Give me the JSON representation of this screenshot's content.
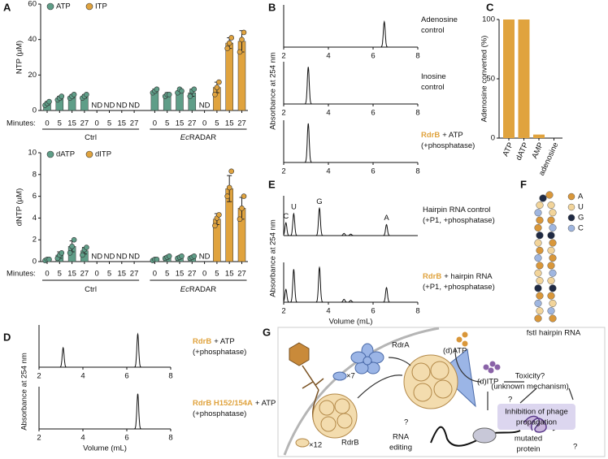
{
  "panel_labels": [
    "A",
    "B",
    "C",
    "D",
    "E",
    "F",
    "G"
  ],
  "chart_data": [
    {
      "type": "bar",
      "ylabel": "NTP (µM)",
      "xlabel": "Minutes:",
      "categories": [
        "0",
        "5",
        "15",
        "27",
        "0",
        "5",
        "15",
        "27",
        "0",
        "5",
        "15",
        "27",
        "0",
        "5",
        "15",
        "27"
      ],
      "groups": [
        {
          "label": "Ctrl"
        },
        {
          "italic": "Ec",
          "label": "RADAR"
        }
      ],
      "ylim": [
        0,
        60
      ],
      "yticks": [
        0,
        20,
        40,
        60
      ],
      "series": [
        {
          "name": "ATP",
          "color": "#5f9e88",
          "values": [
            4,
            7,
            8,
            8,
            null,
            null,
            null,
            null,
            11,
            9,
            11,
            10,
            null,
            null,
            null,
            null
          ],
          "errors": [
            1,
            1,
            1,
            1,
            null,
            null,
            null,
            null,
            1,
            1,
            1,
            2,
            null,
            null,
            null,
            null
          ],
          "points": [
            [
              3,
              4,
              5
            ],
            [
              6,
              7,
              8
            ],
            [
              7,
              8,
              9
            ],
            [
              7,
              8,
              9
            ],
            null,
            null,
            null,
            null,
            [
              10,
              11,
              12
            ],
            [
              8,
              9,
              9
            ],
            [
              10,
              12,
              11
            ],
            [
              8,
              11,
              12
            ],
            null,
            null,
            null,
            null
          ]
        },
        {
          "name": "ITP",
          "color": "#e0a33e",
          "values": [
            null,
            null,
            null,
            null,
            null,
            null,
            null,
            null,
            null,
            null,
            null,
            null,
            null,
            13,
            38,
            39
          ],
          "value_labels": [
            null,
            null,
            null,
            null,
            "ND",
            "ND",
            "ND",
            "ND",
            null,
            null,
            null,
            null,
            "ND",
            null,
            null,
            null
          ],
          "errors": [
            null,
            null,
            null,
            null,
            null,
            null,
            null,
            null,
            null,
            null,
            null,
            null,
            null,
            3,
            3,
            6
          ],
          "points": [
            null,
            null,
            null,
            null,
            null,
            null,
            null,
            null,
            null,
            null,
            null,
            null,
            null,
            [
              9,
              13,
              16
            ],
            [
              35,
              38,
              41
            ],
            [
              33,
              40,
              44
            ]
          ]
        }
      ]
    },
    {
      "type": "bar",
      "ylabel": "dNTP (µM)",
      "xlabel": "Minutes:",
      "categories": [
        "0",
        "5",
        "15",
        "27",
        "0",
        "5",
        "15",
        "27",
        "0",
        "5",
        "15",
        "27",
        "0",
        "5",
        "15",
        "27"
      ],
      "groups": [
        {
          "label": "Ctrl"
        },
        {
          "italic": "Ec",
          "label": "RADAR"
        }
      ],
      "ylim": [
        0,
        10
      ],
      "yticks": [
        0,
        2,
        4,
        6,
        8,
        10
      ],
      "series": [
        {
          "name": "dATP",
          "color": "#5f9e88",
          "values": [
            0.2,
            0.6,
            1.4,
            1.0,
            null,
            null,
            null,
            null,
            0.2,
            0.4,
            0.4,
            0.4,
            null,
            null,
            null,
            null
          ],
          "errors": [
            0.1,
            0.3,
            0.5,
            0.3,
            null,
            null,
            null,
            null,
            0.1,
            0.1,
            0.1,
            0.1,
            null,
            null,
            null,
            null
          ],
          "points": [
            [
              0.1,
              0.2,
              0.2
            ],
            [
              0.3,
              0.6,
              0.8
            ],
            [
              0.8,
              1.4,
              2.0
            ],
            [
              0.6,
              1.1,
              1.3
            ],
            null,
            null,
            null,
            null,
            [
              0.1,
              0.2,
              0.2
            ],
            [
              0.3,
              0.4,
              0.5
            ],
            [
              0.3,
              0.4,
              0.5
            ],
            [
              0.3,
              0.4,
              0.5
            ],
            null,
            null,
            null,
            null
          ]
        },
        {
          "name": "dITP",
          "color": "#e0a33e",
          "values": [
            null,
            null,
            null,
            null,
            null,
            null,
            null,
            null,
            null,
            null,
            null,
            null,
            null,
            3.9,
            6.7,
            4.9
          ],
          "value_labels": [
            null,
            null,
            null,
            null,
            "ND",
            "ND",
            "ND",
            "ND",
            null,
            null,
            null,
            null,
            "ND",
            null,
            null,
            null
          ],
          "errors": [
            null,
            null,
            null,
            null,
            null,
            null,
            null,
            null,
            null,
            null,
            null,
            null,
            null,
            0.5,
            1.2,
            1.0
          ],
          "points": [
            null,
            null,
            null,
            null,
            null,
            null,
            null,
            null,
            null,
            null,
            null,
            null,
            null,
            [
              3.3,
              4.0,
              4.3
            ],
            [
              6.0,
              6.8,
              8.3
            ],
            [
              3.9,
              4.9,
              6.0
            ]
          ]
        }
      ]
    },
    {
      "type": "chromatogram",
      "ylabel": "Absorbance at 254 nm",
      "xlim": [
        2,
        8
      ],
      "xticks": [
        2,
        4,
        6,
        8
      ],
      "traces": [
        {
          "label": {
            "lines": [
              "Adenosine",
              "control"
            ]
          },
          "peaks": [
            {
              "x": 6.5,
              "height": 0.65
            }
          ]
        },
        {
          "label": {
            "lines": [
              "Inosine",
              "control"
            ]
          },
          "peaks": [
            {
              "x": 3.1,
              "height": 0.95
            }
          ]
        },
        {
          "label": {
            "highlight": "RdrB",
            "lines": [
              "+ ATP",
              "(+phosphatase)"
            ]
          },
          "peaks": [
            {
              "x": 3.1,
              "height": 1.0
            }
          ]
        }
      ]
    },
    {
      "type": "bar",
      "ylabel": "Adenosine converted (%)",
      "color": "#e0a33e",
      "categories": [
        "ATP",
        "dATP",
        "AMP",
        "adenosine"
      ],
      "values": [
        100,
        100,
        3,
        0
      ],
      "ylim": [
        0,
        100
      ],
      "yticks": [
        0,
        50,
        100
      ]
    },
    {
      "type": "chromatogram",
      "ylabel": "Absorbance at 254 nm",
      "xlabel": "Volume (mL)",
      "xlim": [
        2,
        8
      ],
      "xticks": [
        2,
        4,
        6,
        8
      ],
      "traces": [
        {
          "label": {
            "highlight": "RdrB",
            "lines": [
              "+ ATP",
              "(+phosphatase)"
            ]
          },
          "peaks": [
            {
              "x": 3.1,
              "height": 0.5
            },
            {
              "x": 6.5,
              "height": 0.85
            }
          ]
        },
        {
          "label": {
            "highlight": "RdrB H152/154A",
            "lines": [
              "+ ATP",
              "(+phosphatase)"
            ]
          },
          "peaks": [
            {
              "x": 6.5,
              "height": 0.9
            }
          ]
        }
      ]
    },
    {
      "type": "chromatogram",
      "ylabel": "Absorbance at 254 nm",
      "xlabel": "Volume (mL)",
      "xlim": [
        2,
        8
      ],
      "xticks": [
        2,
        4,
        6,
        8
      ],
      "traces": [
        {
          "label": {
            "lines": [
              "Hairpin RNA control",
              "(+P1, +phosphatase)"
            ]
          },
          "peaks": [
            {
              "x": 2.1,
              "height": 0.35,
              "label": "C"
            },
            {
              "x": 2.45,
              "height": 0.6,
              "label": "U"
            },
            {
              "x": 3.6,
              "height": 0.75,
              "label": "G"
            },
            {
              "x": 4.7,
              "height": 0.06
            },
            {
              "x": 5.0,
              "height": 0.04
            },
            {
              "x": 6.6,
              "height": 0.3,
              "label": "A"
            }
          ]
        },
        {
          "label": {
            "highlight": "RdrB",
            "lines": [
              "+ hairpin RNA",
              "(+P1, +phosphatase)"
            ]
          },
          "peaks": [
            {
              "x": 2.1,
              "height": 0.35
            },
            {
              "x": 2.45,
              "height": 0.9
            },
            {
              "x": 3.6,
              "height": 0.95
            },
            {
              "x": 4.7,
              "height": 0.08
            },
            {
              "x": 5.0,
              "height": 0.05
            },
            {
              "x": 6.6,
              "height": 0.4
            }
          ]
        }
      ]
    }
  ],
  "hairpin": {
    "legend": [
      {
        "label": "A",
        "color": "#d9973a"
      },
      {
        "label": "U",
        "color": "#f2d49a"
      },
      {
        "label": "G",
        "color": "#1f2a44"
      },
      {
        "label": "C",
        "color": "#9fb6e0"
      }
    ],
    "caption": "fstI hairpin RNA"
  },
  "schematic": {
    "labels": [
      "RdrA",
      "×7",
      "RdrB",
      "×12",
      "(d)ATP",
      "(d)ITP",
      "Toxicity?",
      "(unknown mechanism)",
      "Inhibition of phage",
      "propagation",
      "?",
      "?",
      "RNA",
      "editing",
      "mutated",
      "protein",
      "?"
    ]
  }
}
